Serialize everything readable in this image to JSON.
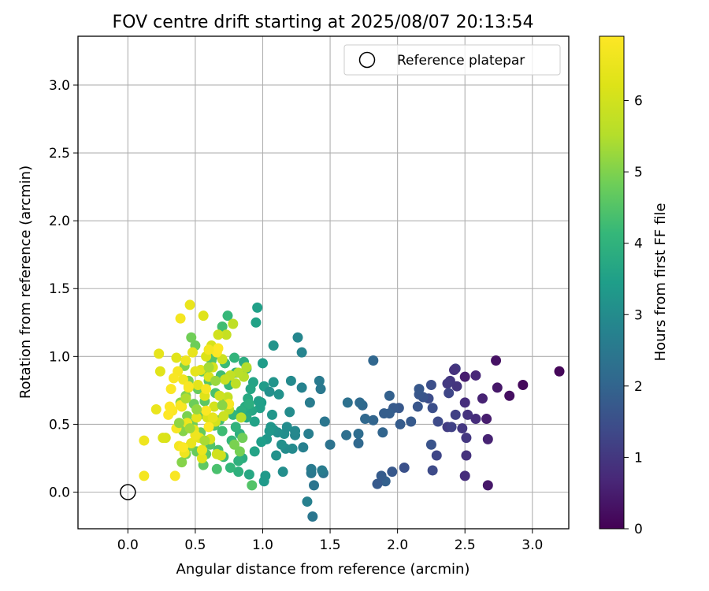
{
  "chart_data": {
    "type": "scatter",
    "title": "FOV centre drift starting at 2025/08/07 20:13:54",
    "xlabel": "Angular distance from reference (arcmin)",
    "ylabel": "Rotation from reference (arcmin)",
    "xlim": [
      -0.37,
      3.27
    ],
    "ylim": [
      -0.27,
      3.36
    ],
    "x_ticks": [
      "0.0",
      "0.5",
      "1.0",
      "1.5",
      "2.0",
      "2.5",
      "3.0"
    ],
    "y_ticks": [
      "0.0",
      "0.5",
      "1.0",
      "1.5",
      "2.0",
      "2.5",
      "3.0"
    ],
    "grid": true,
    "legend": {
      "location": "top-right",
      "entries": [
        "Reference platepar"
      ]
    },
    "reference_point": {
      "x": 0.0,
      "y": 0.0,
      "label": "Reference platepar"
    },
    "colorbar": {
      "label": "Hours from first FF file",
      "colormap": "viridis",
      "range": [
        0,
        6.9
      ],
      "ticks": [
        "0",
        "1",
        "2",
        "3",
        "4",
        "5",
        "6"
      ]
    },
    "points": [
      [
        3.2,
        0.89,
        0.1
      ],
      [
        2.93,
        0.79,
        0.15
      ],
      [
        2.83,
        0.71,
        0.25
      ],
      [
        2.73,
        0.97,
        0.3
      ],
      [
        2.74,
        0.77,
        0.4
      ],
      [
        2.67,
        0.05,
        0.4
      ],
      [
        2.66,
        0.54,
        0.5
      ],
      [
        2.67,
        0.39,
        0.6
      ],
      [
        2.63,
        0.69,
        0.6
      ],
      [
        2.58,
        0.86,
        0.7
      ],
      [
        2.58,
        0.54,
        0.8
      ],
      [
        2.52,
        0.57,
        0.9
      ],
      [
        2.5,
        0.85,
        0.5
      ],
      [
        2.5,
        0.66,
        0.8
      ],
      [
        2.5,
        0.12,
        0.8
      ],
      [
        2.51,
        0.27,
        0.9
      ],
      [
        2.51,
        0.4,
        1.0
      ],
      [
        2.48,
        0.47,
        1.0
      ],
      [
        2.43,
        0.91,
        1.1
      ],
      [
        2.42,
        0.9,
        0.9
      ],
      [
        2.44,
        0.78,
        0.95
      ],
      [
        2.39,
        0.82,
        1.0
      ],
      [
        2.37,
        0.8,
        1.05
      ],
      [
        2.37,
        0.48,
        1.1
      ],
      [
        2.4,
        0.48,
        1.2
      ],
      [
        2.43,
        0.57,
        1.2
      ],
      [
        2.38,
        0.73,
        1.3
      ],
      [
        2.3,
        0.52,
        1.4
      ],
      [
        2.29,
        0.27,
        1.3
      ],
      [
        2.26,
        0.16,
        1.4
      ],
      [
        2.25,
        0.35,
        1.6
      ],
      [
        2.23,
        0.69,
        1.45
      ],
      [
        2.26,
        0.62,
        1.5
      ],
      [
        2.25,
        0.79,
        1.5
      ],
      [
        2.19,
        0.7,
        1.6
      ],
      [
        2.16,
        0.72,
        1.65
      ],
      [
        2.16,
        0.76,
        1.7
      ],
      [
        2.15,
        0.63,
        1.65
      ],
      [
        2.1,
        0.52,
        1.75
      ],
      [
        2.05,
        0.18,
        1.55
      ],
      [
        2.02,
        0.5,
        1.8
      ],
      [
        2.01,
        0.62,
        1.7
      ],
      [
        1.97,
        0.62,
        1.75
      ],
      [
        1.94,
        0.71,
        1.9
      ],
      [
        1.94,
        0.58,
        1.85
      ],
      [
        1.96,
        0.15,
        1.7
      ],
      [
        1.91,
        0.08,
        1.9
      ],
      [
        1.88,
        0.12,
        1.8
      ],
      [
        1.85,
        0.06,
        1.75
      ],
      [
        1.9,
        0.58,
        1.85
      ],
      [
        1.89,
        0.44,
        2.0
      ],
      [
        1.82,
        0.97,
        2.05
      ],
      [
        1.82,
        0.53,
        2.0
      ],
      [
        1.76,
        0.54,
        2.1
      ],
      [
        1.74,
        0.64,
        2.1
      ],
      [
        1.72,
        0.66,
        2.15
      ],
      [
        1.71,
        0.43,
        2.2
      ],
      [
        1.71,
        0.36,
        2.1
      ],
      [
        1.62,
        0.42,
        2.25
      ],
      [
        1.63,
        0.66,
        2.3
      ],
      [
        1.5,
        0.35,
        2.35
      ],
      [
        1.45,
        0.14,
        2.4
      ],
      [
        1.46,
        0.52,
        2.45
      ],
      [
        1.43,
        0.76,
        2.5
      ],
      [
        1.42,
        0.82,
        2.55
      ],
      [
        1.44,
        0.16,
        2.6
      ],
      [
        1.38,
        0.05,
        2.4
      ],
      [
        1.36,
        0.14,
        2.5
      ],
      [
        1.36,
        0.17,
        2.55
      ],
      [
        1.35,
        0.66,
        2.6
      ],
      [
        1.34,
        0.43,
        2.65
      ],
      [
        1.33,
        -0.07,
        2.7
      ],
      [
        1.37,
        -0.18,
        2.45
      ],
      [
        1.3,
        0.33,
        2.7
      ],
      [
        1.29,
        0.77,
        2.75
      ],
      [
        1.29,
        1.03,
        2.8
      ],
      [
        1.26,
        1.14,
        2.85
      ],
      [
        1.24,
        0.42,
        2.85
      ],
      [
        1.24,
        0.45,
        2.9
      ],
      [
        1.21,
        0.82,
        2.95
      ],
      [
        1.22,
        0.32,
        2.95
      ],
      [
        1.2,
        0.59,
        3.0
      ],
      [
        1.17,
        0.32,
        3.0
      ],
      [
        1.16,
        0.43,
        3.05
      ],
      [
        1.15,
        0.15,
        3.05
      ],
      [
        1.14,
        0.35,
        3.1
      ],
      [
        1.11,
        0.44,
        3.1
      ],
      [
        1.1,
        0.27,
        3.15
      ],
      [
        1.08,
        0.46,
        3.15
      ],
      [
        1.08,
        1.08,
        3.2
      ],
      [
        1.08,
        0.81,
        3.2
      ],
      [
        1.07,
        0.57,
        3.25
      ],
      [
        1.06,
        0.48,
        3.25
      ],
      [
        1.05,
        0.45,
        3.3
      ],
      [
        1.03,
        0.39,
        3.3
      ],
      [
        1.02,
        0.12,
        3.35
      ],
      [
        1.01,
        0.08,
        3.35
      ],
      [
        1.01,
        0.78,
        3.4
      ],
      [
        1.0,
        0.95,
        3.4
      ],
      [
        0.99,
        0.37,
        3.45
      ],
      [
        0.99,
        0.66,
        3.45
      ],
      [
        0.98,
        0.62,
        3.5
      ],
      [
        0.97,
        0.67,
        3.5
      ],
      [
        0.96,
        1.36,
        3.5
      ],
      [
        0.95,
        1.25,
        3.55
      ],
      [
        0.94,
        0.52,
        3.55
      ],
      [
        0.94,
        0.3,
        3.6
      ],
      [
        0.93,
        0.81,
        3.6
      ],
      [
        0.92,
        0.6,
        3.65
      ],
      [
        0.91,
        0.76,
        3.65
      ],
      [
        0.9,
        0.13,
        3.7
      ],
      [
        0.9,
        0.61,
        3.7
      ],
      [
        0.89,
        0.69,
        3.75
      ],
      [
        0.88,
        0.55,
        3.75
      ],
      [
        0.88,
        0.91,
        3.8
      ],
      [
        0.87,
        0.63,
        3.8
      ],
      [
        0.86,
        0.96,
        3.85
      ],
      [
        0.85,
        0.25,
        3.85
      ],
      [
        0.84,
        0.6,
        3.9
      ],
      [
        0.83,
        0.43,
        3.9
      ],
      [
        0.82,
        0.15,
        3.95
      ],
      [
        0.82,
        0.23,
        3.95
      ],
      [
        0.8,
        0.88,
        4.0
      ],
      [
        0.8,
        0.48,
        4.0
      ],
      [
        0.79,
        0.99,
        4.05
      ],
      [
        0.78,
        0.57,
        4.05
      ],
      [
        0.77,
        0.38,
        4.1
      ],
      [
        0.76,
        0.18,
        4.1
      ],
      [
        0.75,
        0.79,
        4.15
      ],
      [
        0.74,
        1.3,
        4.15
      ],
      [
        0.73,
        0.67,
        4.2
      ],
      [
        0.72,
        0.95,
        4.2
      ],
      [
        0.71,
        0.26,
        4.25
      ],
      [
        0.7,
        0.45,
        4.25
      ],
      [
        0.7,
        1.22,
        4.3
      ],
      [
        0.69,
        0.86,
        4.3
      ],
      [
        0.68,
        0.53,
        4.35
      ],
      [
        0.67,
        0.31,
        4.35
      ],
      [
        0.66,
        0.17,
        4.4
      ],
      [
        0.65,
        0.73,
        4.4
      ],
      [
        0.64,
        0.49,
        4.45
      ],
      [
        0.63,
        1.0,
        4.45
      ],
      [
        0.62,
        0.97,
        4.5
      ],
      [
        0.61,
        0.35,
        4.5
      ],
      [
        0.6,
        0.82,
        4.55
      ],
      [
        0.59,
        0.55,
        4.55
      ],
      [
        0.58,
        0.28,
        4.6
      ],
      [
        0.57,
        0.67,
        4.6
      ],
      [
        0.56,
        0.2,
        4.65
      ],
      [
        0.55,
        0.89,
        4.65
      ],
      [
        0.54,
        0.44,
        4.7
      ],
      [
        0.53,
        0.57,
        4.7
      ],
      [
        0.52,
        0.76,
        4.75
      ],
      [
        0.51,
        0.3,
        4.75
      ],
      [
        0.5,
        1.08,
        4.8
      ],
      [
        0.49,
        0.65,
        4.8
      ],
      [
        0.48,
        0.5,
        4.85
      ],
      [
        0.47,
        1.14,
        4.85
      ],
      [
        0.46,
        0.34,
        4.9
      ],
      [
        0.45,
        0.82,
        4.9
      ],
      [
        0.44,
        0.56,
        4.95
      ],
      [
        0.43,
        0.28,
        4.95
      ],
      [
        0.43,
        0.71,
        5.0
      ],
      [
        0.42,
        0.93,
        5.0
      ],
      [
        0.41,
        0.45,
        5.05
      ],
      [
        0.4,
        0.22,
        5.05
      ],
      [
        0.39,
        0.66,
        5.1
      ],
      [
        0.92,
        0.05,
        4.5
      ],
      [
        0.88,
        0.92,
        5.5
      ],
      [
        0.86,
        0.85,
        5.55
      ],
      [
        0.84,
        0.55,
        5.6
      ],
      [
        0.82,
        0.88,
        5.6
      ],
      [
        0.8,
        0.8,
        5.65
      ],
      [
        0.78,
        1.24,
        5.7
      ],
      [
        0.76,
        0.86,
        5.75
      ],
      [
        0.75,
        0.61,
        5.75
      ],
      [
        0.74,
        0.7,
        5.8
      ],
      [
        0.73,
        1.16,
        5.8
      ],
      [
        0.72,
        0.83,
        5.85
      ],
      [
        0.71,
        0.56,
        5.9
      ],
      [
        0.7,
        0.98,
        5.9
      ],
      [
        0.69,
        0.27,
        5.95
      ],
      [
        0.68,
        0.71,
        5.95
      ],
      [
        0.67,
        1.16,
        6.0
      ],
      [
        0.66,
        0.28,
        6.0
      ],
      [
        0.65,
        0.52,
        6.05
      ],
      [
        0.64,
        0.63,
        6.05
      ],
      [
        0.63,
        0.92,
        6.1
      ],
      [
        0.62,
        1.08,
        6.1
      ],
      [
        0.61,
        0.39,
        6.15
      ],
      [
        0.6,
        0.85,
        6.15
      ],
      [
        0.59,
        0.55,
        6.2
      ],
      [
        0.58,
        1.0,
        6.2
      ],
      [
        0.57,
        0.71,
        6.25
      ],
      [
        0.56,
        1.3,
        6.25
      ],
      [
        0.55,
        0.25,
        6.3
      ],
      [
        0.54,
        0.9,
        6.3
      ],
      [
        0.53,
        0.4,
        6.35
      ],
      [
        0.52,
        0.79,
        6.35
      ],
      [
        0.51,
        0.55,
        6.4
      ],
      [
        0.5,
        0.89,
        6.4
      ],
      [
        0.49,
        0.46,
        6.45
      ],
      [
        0.48,
        1.03,
        6.45
      ],
      [
        0.47,
        0.36,
        6.5
      ],
      [
        0.46,
        1.38,
        6.5
      ],
      [
        0.45,
        0.77,
        6.55
      ],
      [
        0.44,
        0.51,
        6.55
      ],
      [
        0.43,
        0.97,
        6.6
      ],
      [
        0.42,
        0.29,
        6.6
      ],
      [
        0.41,
        0.83,
        6.65
      ],
      [
        0.4,
        0.63,
        6.65
      ],
      [
        0.39,
        1.28,
        6.7
      ],
      [
        0.38,
        0.34,
        6.7
      ],
      [
        0.37,
        0.89,
        6.75
      ],
      [
        0.36,
        0.47,
        6.75
      ],
      [
        0.35,
        0.12,
        6.8
      ],
      [
        0.34,
        0.84,
        6.8
      ],
      [
        0.33,
        0.6,
        6.85
      ],
      [
        0.32,
        0.76,
        6.85
      ],
      [
        0.31,
        0.63,
        6.9
      ],
      [
        0.3,
        0.57,
        6.9
      ],
      [
        0.28,
        0.4,
        6.1
      ],
      [
        0.26,
        0.4,
        6.2
      ],
      [
        0.24,
        0.89,
        6.3
      ],
      [
        0.23,
        1.02,
        6.4
      ],
      [
        0.21,
        0.61,
        6.5
      ],
      [
        0.12,
        0.38,
        6.6
      ],
      [
        0.12,
        0.12,
        6.7
      ],
      [
        0.75,
        0.65,
        6.8
      ],
      [
        0.66,
        1.03,
        6.85
      ],
      [
        0.67,
        1.06,
        6.9
      ],
      [
        0.58,
        0.6,
        6.85
      ],
      [
        0.6,
        0.48,
        6.9
      ],
      [
        0.45,
        0.78,
        6.8
      ],
      [
        0.58,
        0.76,
        6.75
      ],
      [
        0.39,
        0.64,
        6.8
      ],
      [
        0.41,
        0.33,
        6.85
      ],
      [
        0.6,
        1.05,
        6.7
      ],
      [
        0.5,
        0.42,
        6.6
      ],
      [
        0.55,
        0.31,
        6.5
      ],
      [
        0.63,
        0.55,
        6.4
      ],
      [
        0.36,
        0.99,
        6.3
      ],
      [
        0.51,
        0.61,
        5.2
      ],
      [
        0.46,
        0.47,
        5.3
      ],
      [
        0.57,
        0.38,
        5.4
      ],
      [
        0.43,
        0.69,
        5.45
      ],
      [
        0.6,
        0.92,
        5.35
      ],
      [
        0.65,
        0.82,
        5.25
      ],
      [
        0.38,
        0.51,
        5.15
      ],
      [
        0.7,
        0.64,
        5.1
      ],
      [
        0.79,
        0.35,
        4.95
      ],
      [
        0.83,
        0.3,
        4.9
      ],
      [
        0.85,
        0.4,
        4.85
      ],
      [
        0.9,
        0.65,
        3.9
      ],
      [
        1.05,
        0.74,
        3.1
      ],
      [
        1.12,
        0.72,
        3.15
      ],
      [
        1.18,
        0.48,
        3.0
      ]
    ]
  }
}
